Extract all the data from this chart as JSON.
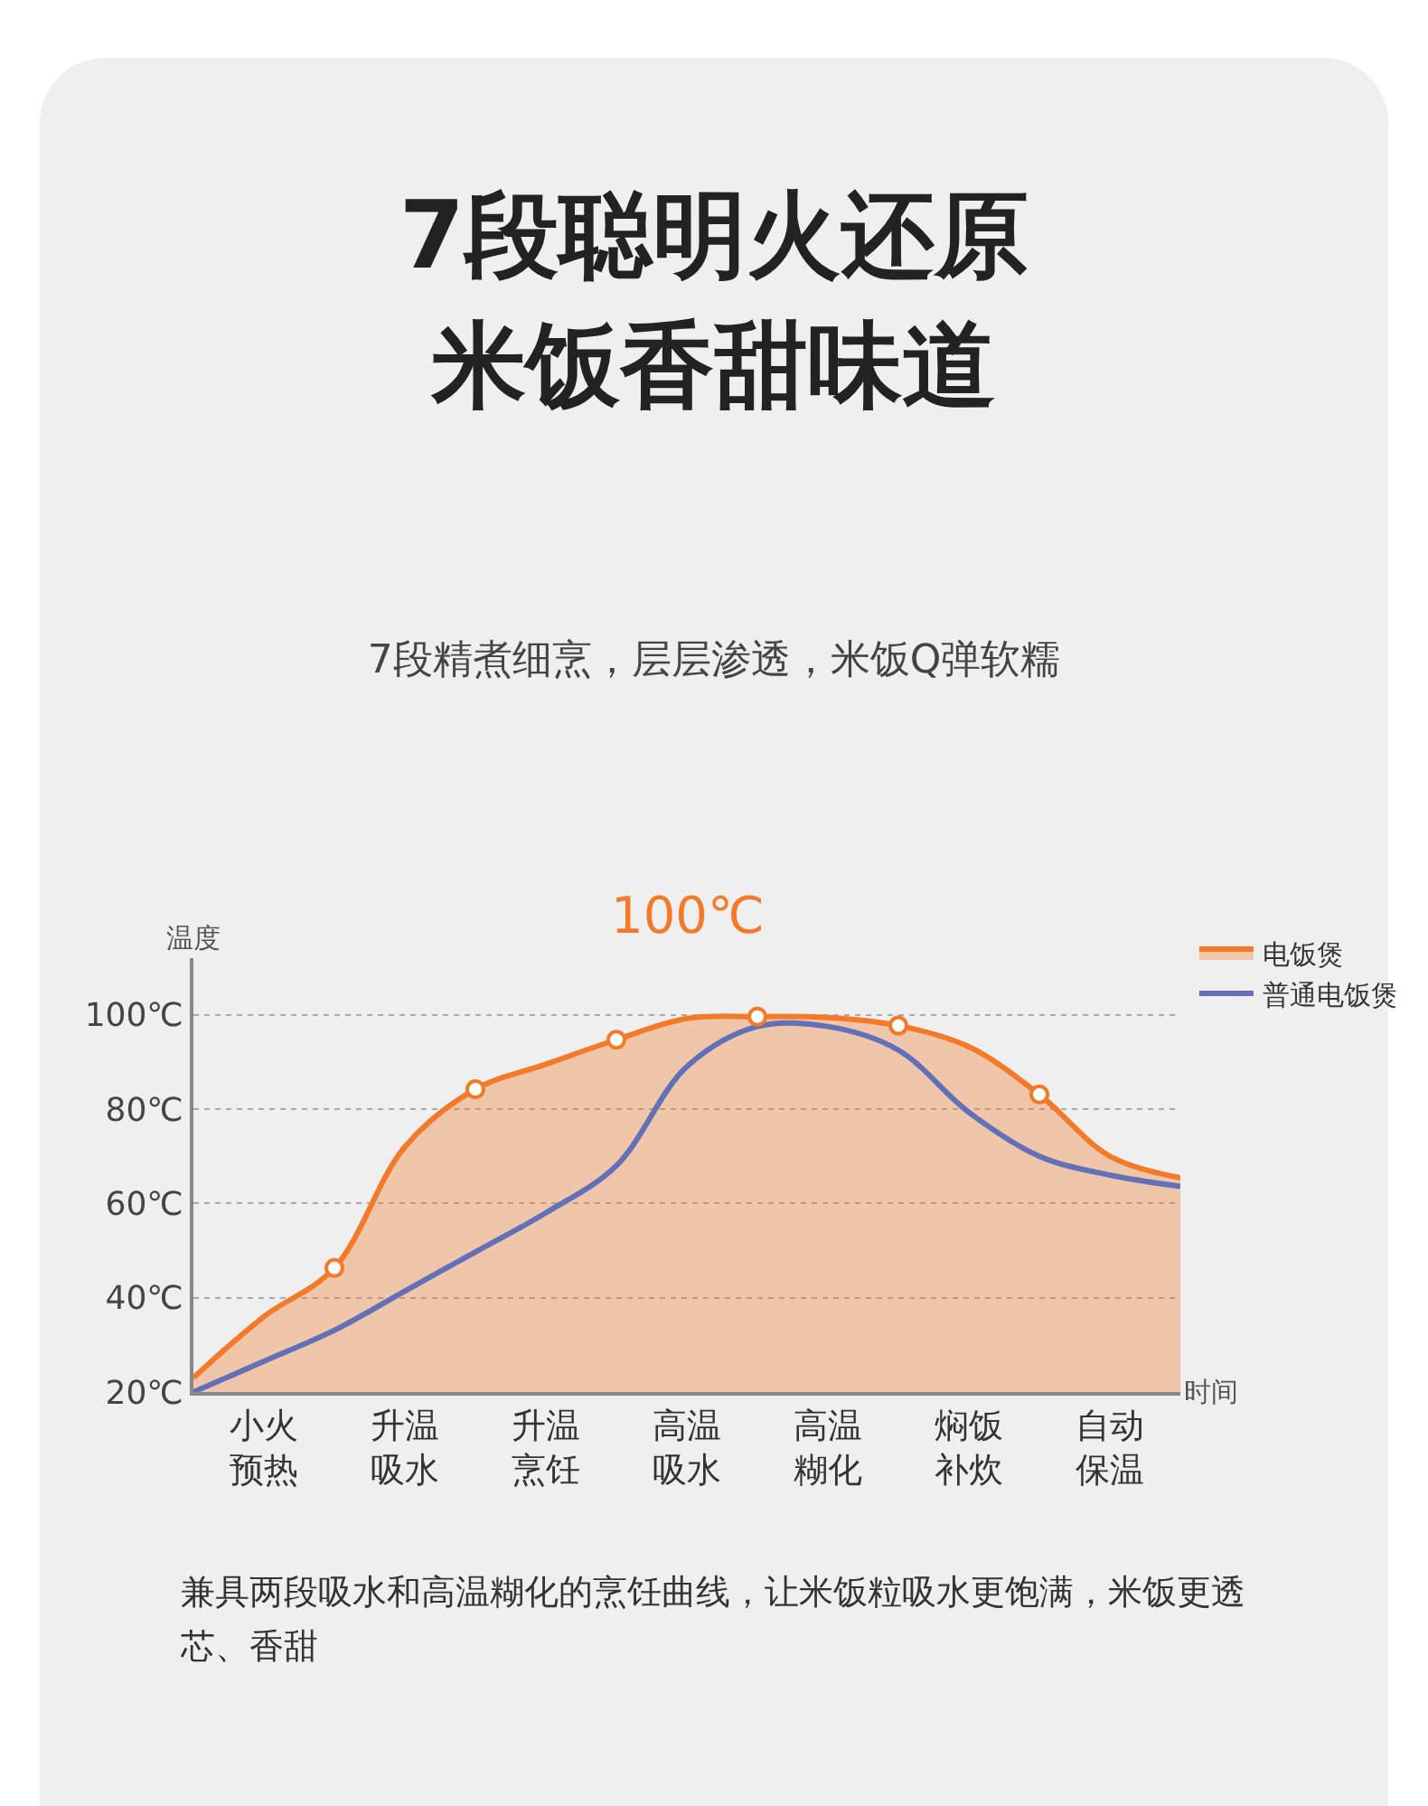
{
  "chart_data": {
    "type": "area",
    "title": "7段聪明火还原米饭香甜味道",
    "subtitle": "7段精煮细烹，层层渗透，米饭Q弹软糯",
    "xlabel": "时间",
    "ylabel": "温度",
    "categories": [
      null,
      "小火预热",
      null,
      "升温吸水",
      null,
      "升温烹饪",
      null,
      "高温吸水",
      null,
      "高温糊化",
      null,
      "焖饭补炊",
      null,
      "自动保温",
      null
    ],
    "ylim": [
      20,
      112
    ],
    "yticks": [
      {
        "value": 20,
        "label": "20℃"
      },
      {
        "value": 40,
        "label": "40℃"
      },
      {
        "value": 60,
        "label": "60℃"
      },
      {
        "value": 80,
        "label": "80℃"
      },
      {
        "value": 100,
        "label": "100℃"
      }
    ],
    "grid": "y",
    "legend": "top right",
    "series": [
      {
        "name": "电饭煲",
        "color": "#f47a2a",
        "marker": "none",
        "values": [
          23,
          36,
          46.3,
          72,
          84.2,
          89.5,
          94.7,
          99.2,
          99.6,
          99.4,
          97.7,
          93.2,
          83.1,
          70,
          65.4
        ]
      },
      {
        "type": "line",
        "name": "普通电饭煲",
        "color": "#6270b8",
        "marker": "none",
        "values": [
          20,
          26.5,
          33.1,
          41.4,
          49.7,
          58,
          68,
          89,
          97.5,
          97.5,
          92.5,
          79.3,
          70,
          66,
          63.6
        ]
      },
      {
        "type": "scatter",
        "color": "#f47a2a",
        "marker": "circle",
        "values": [
          null,
          null,
          46.3,
          null,
          84.2,
          null,
          94.7,
          null,
          99.6,
          null,
          97.7,
          null,
          83.1,
          null,
          null
        ]
      }
    ],
    "annotations": [
      "100℃",
      "兼具两段吸水和高温糊化的烹饪曲线，让米饭粒吸水更饱满，米饭更透芯、香甜"
    ]
  }
}
